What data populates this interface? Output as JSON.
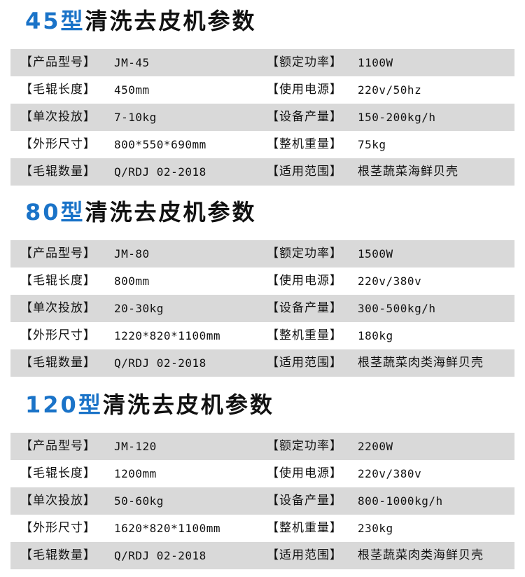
{
  "sections": [
    {
      "model": "45型",
      "title": "清洗去皮机参数",
      "rows": [
        [
          "【产品型号】",
          "JM-45",
          "【额定功率】",
          "1100W"
        ],
        [
          "【毛辊长度】",
          "450mm",
          "【使用电源】",
          "220v/50hz"
        ],
        [
          "【单次投放】",
          "7-10kg",
          "【设备产量】",
          "150-200kg/h"
        ],
        [
          "【外形尺寸】",
          "800*550*690mm",
          "【整机重量】",
          "75kg"
        ],
        [
          "【毛辊数量】",
          "Q/RDJ 02-2018",
          "【适用范围】",
          "根茎蔬菜海鲜贝壳"
        ]
      ]
    },
    {
      "model": "80型",
      "title": "清洗去皮机参数",
      "rows": [
        [
          "【产品型号】",
          "JM-80",
          "【额定功率】",
          "1500W"
        ],
        [
          "【毛辊长度】",
          "800mm",
          "【使用电源】",
          "220v/380v"
        ],
        [
          "【单次投放】",
          "20-30kg",
          "【设备产量】",
          "300-500kg/h"
        ],
        [
          "【外形尺寸】",
          "1220*820*1100mm",
          "【整机重量】",
          "180kg"
        ],
        [
          "【毛辊数量】",
          "Q/RDJ 02-2018",
          "【适用范围】",
          "根茎蔬菜肉类海鲜贝壳"
        ]
      ]
    },
    {
      "model": "120型",
      "title": "清洗去皮机参数",
      "rows": [
        [
          "【产品型号】",
          "JM-120",
          "【额定功率】",
          "2200W"
        ],
        [
          "【毛辊长度】",
          "1200mm",
          "【使用电源】",
          "220v/380v"
        ],
        [
          "【单次投放】",
          "50-60kg",
          "【设备产量】",
          "800-1000kg/h"
        ],
        [
          "【外形尺寸】",
          "1620*820*1100mm",
          "【整机重量】",
          "230kg"
        ],
        [
          "【毛辊数量】",
          "Q/RDJ 02-2018",
          "【适用范围】",
          "根茎蔬菜肉类海鲜贝壳"
        ]
      ]
    }
  ]
}
